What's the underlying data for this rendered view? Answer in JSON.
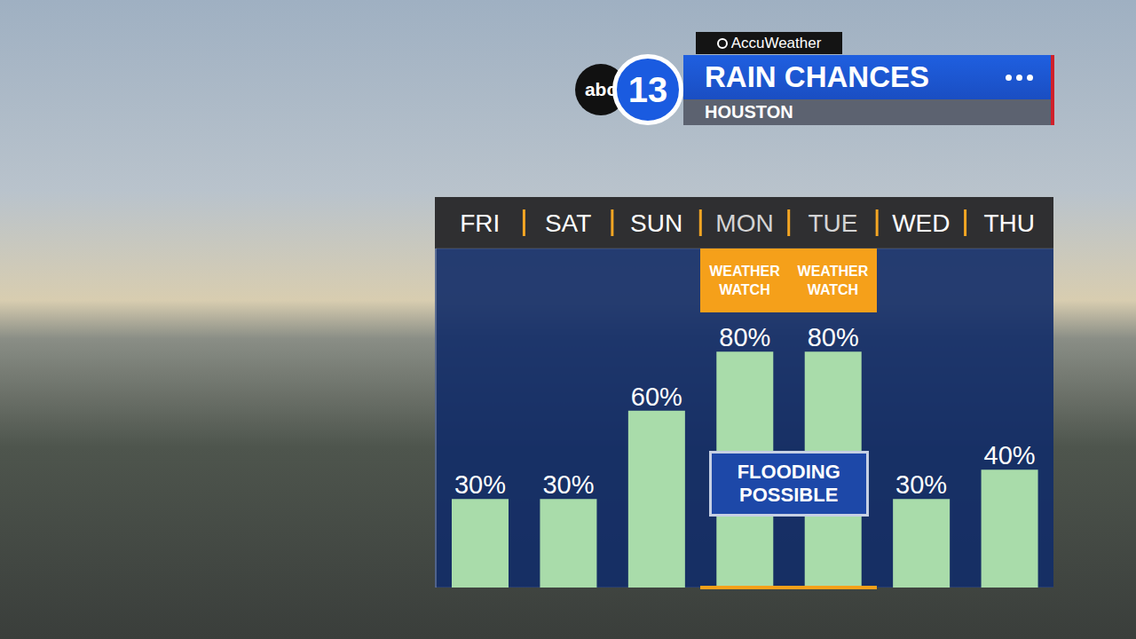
{
  "chart_data": {
    "type": "bar",
    "title": "RAIN CHANCES",
    "subtitle": "HOUSTON",
    "categories": [
      "FRI",
      "SAT",
      "SUN",
      "MON",
      "TUE",
      "WED",
      "THU"
    ],
    "values": [
      30,
      30,
      60,
      80,
      80,
      30,
      40
    ],
    "value_labels": [
      "30%",
      "30%",
      "60%",
      "80%",
      "80%",
      "30%",
      "40%"
    ],
    "color": "#a9dcaa",
    "ylim": [
      0,
      115
    ],
    "yticks": [
      20,
      40,
      60,
      80,
      100
    ],
    "grid": true,
    "data_labels": true,
    "tick_labels": "x",
    "annotations": [
      {
        "text": "WEATHER WATCH",
        "categories": [
          "MON"
        ]
      },
      {
        "text": "WEATHER WATCH",
        "categories": [
          "TUE"
        ]
      },
      {
        "text": "FLOODING POSSIBLE",
        "categories": [
          "MON",
          "TUE"
        ]
      }
    ]
  },
  "branding": {
    "logo": [
      "abc",
      "13"
    ],
    "source": "AccuWeather"
  }
}
